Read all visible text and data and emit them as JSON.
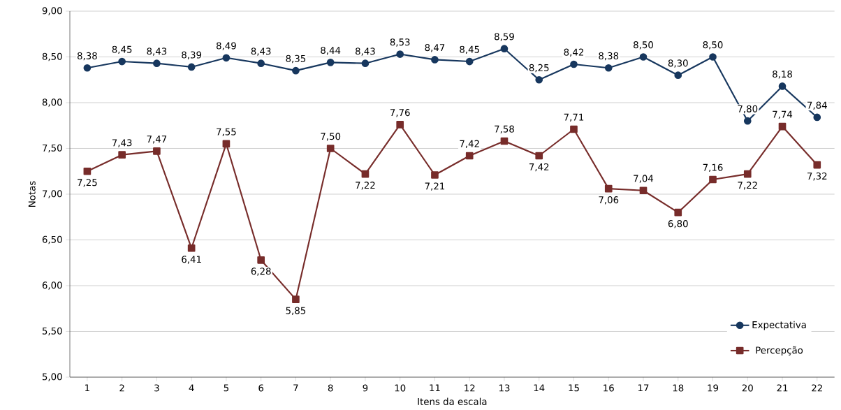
{
  "chart_data": {
    "type": "line",
    "xlabel": "Itens da escala",
    "ylabel": "Notas",
    "categories": [
      "1",
      "2",
      "3",
      "4",
      "5",
      "6",
      "7",
      "8",
      "9",
      "10",
      "11",
      "12",
      "13",
      "14",
      "15",
      "16",
      "17",
      "18",
      "19",
      "20",
      "21",
      "22"
    ],
    "series": [
      {
        "name": "Expectativa",
        "color": "#17375e",
        "marker": "circle",
        "values": [
          8.38,
          8.45,
          8.43,
          8.39,
          8.49,
          8.43,
          8.35,
          8.44,
          8.43,
          8.53,
          8.47,
          8.45,
          8.59,
          8.25,
          8.42,
          8.38,
          8.5,
          8.3,
          8.5,
          7.8,
          8.18,
          7.84
        ],
        "value_labels": [
          "8,38",
          "8,45",
          "8,43",
          "8,39",
          "8,49",
          "8,43",
          "8,35",
          "8,44",
          "8,43",
          "8,53",
          "8,47",
          "8,45",
          "8,59",
          "8,25",
          "8,42",
          "8,38",
          "8,50",
          "8,30",
          "8,50",
          "7,80",
          "8,18",
          "7,84"
        ]
      },
      {
        "name": "Percepção",
        "color": "#772c2a",
        "marker": "square",
        "values": [
          7.25,
          7.43,
          7.47,
          6.41,
          7.55,
          6.28,
          5.85,
          7.5,
          7.22,
          7.76,
          7.21,
          7.42,
          7.58,
          7.42,
          7.71,
          7.06,
          7.04,
          6.8,
          7.16,
          7.22,
          7.74,
          7.32
        ],
        "value_labels": [
          "7,25",
          "7,43",
          "7,47",
          "6,41",
          "7,55",
          "6,28",
          "5,85",
          "7,50",
          "7,22",
          "7,76",
          "7,21",
          "7,42",
          "7,58",
          "7,42",
          "7,71",
          "7,06",
          "7,04",
          "6,80",
          "7,16",
          "7,22",
          "7,74",
          "7,32"
        ]
      }
    ],
    "ylim": [
      5,
      9
    ],
    "yticks": [
      {
        "value": 5,
        "label": "5,00"
      },
      {
        "value": 5.5,
        "label": "5,50"
      },
      {
        "value": 6,
        "label": "6,00"
      },
      {
        "value": 6.5,
        "label": "6,50"
      },
      {
        "value": 7,
        "label": "7,00"
      },
      {
        "value": 7.5,
        "label": "7,50"
      },
      {
        "value": 8,
        "label": "8,00"
      },
      {
        "value": 8.5,
        "label": "8,50"
      },
      {
        "value": 9,
        "label": "9,00"
      }
    ],
    "grid": "y",
    "legend": "bottom right",
    "line_style": "solid"
  }
}
